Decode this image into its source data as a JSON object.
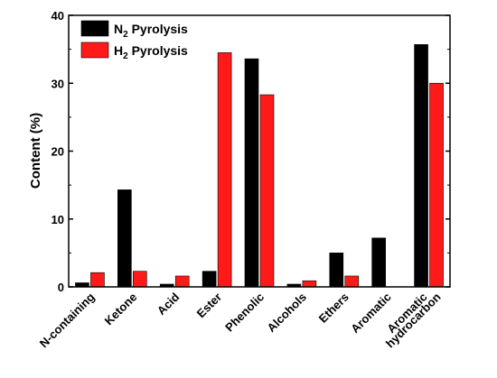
{
  "chart_data": {
    "type": "bar",
    "ylabel": "Content  (%)",
    "xlabel": "",
    "ylim": [
      0,
      40
    ],
    "yticks": [
      0,
      10,
      20,
      30,
      40
    ],
    "categories": [
      [
        "N-containing"
      ],
      [
        "Ketone"
      ],
      [
        "Acid"
      ],
      [
        "Ester"
      ],
      [
        "Phenolic"
      ],
      [
        "Alcohols"
      ],
      [
        "Ethers"
      ],
      [
        "Aromatic"
      ],
      [
        "Aromatic",
        "hydrocarbon"
      ]
    ],
    "series": [
      {
        "name": "N2 Pyrolysis",
        "legend_parts": [
          "N",
          "2",
          " Pyrolysis"
        ],
        "color": "#000000",
        "values": [
          0.6,
          14.3,
          0.4,
          2.3,
          33.6,
          0.4,
          5.0,
          7.2,
          35.7
        ]
      },
      {
        "name": "H2 Pyrolysis",
        "legend_parts": [
          "H",
          "2",
          " Pyrolysis"
        ],
        "color": "#ff1a1a",
        "values": [
          2.1,
          2.3,
          1.6,
          34.5,
          28.3,
          0.9,
          1.6,
          0,
          30.0
        ]
      }
    ],
    "legend_position": "top-left",
    "grid": false
  }
}
